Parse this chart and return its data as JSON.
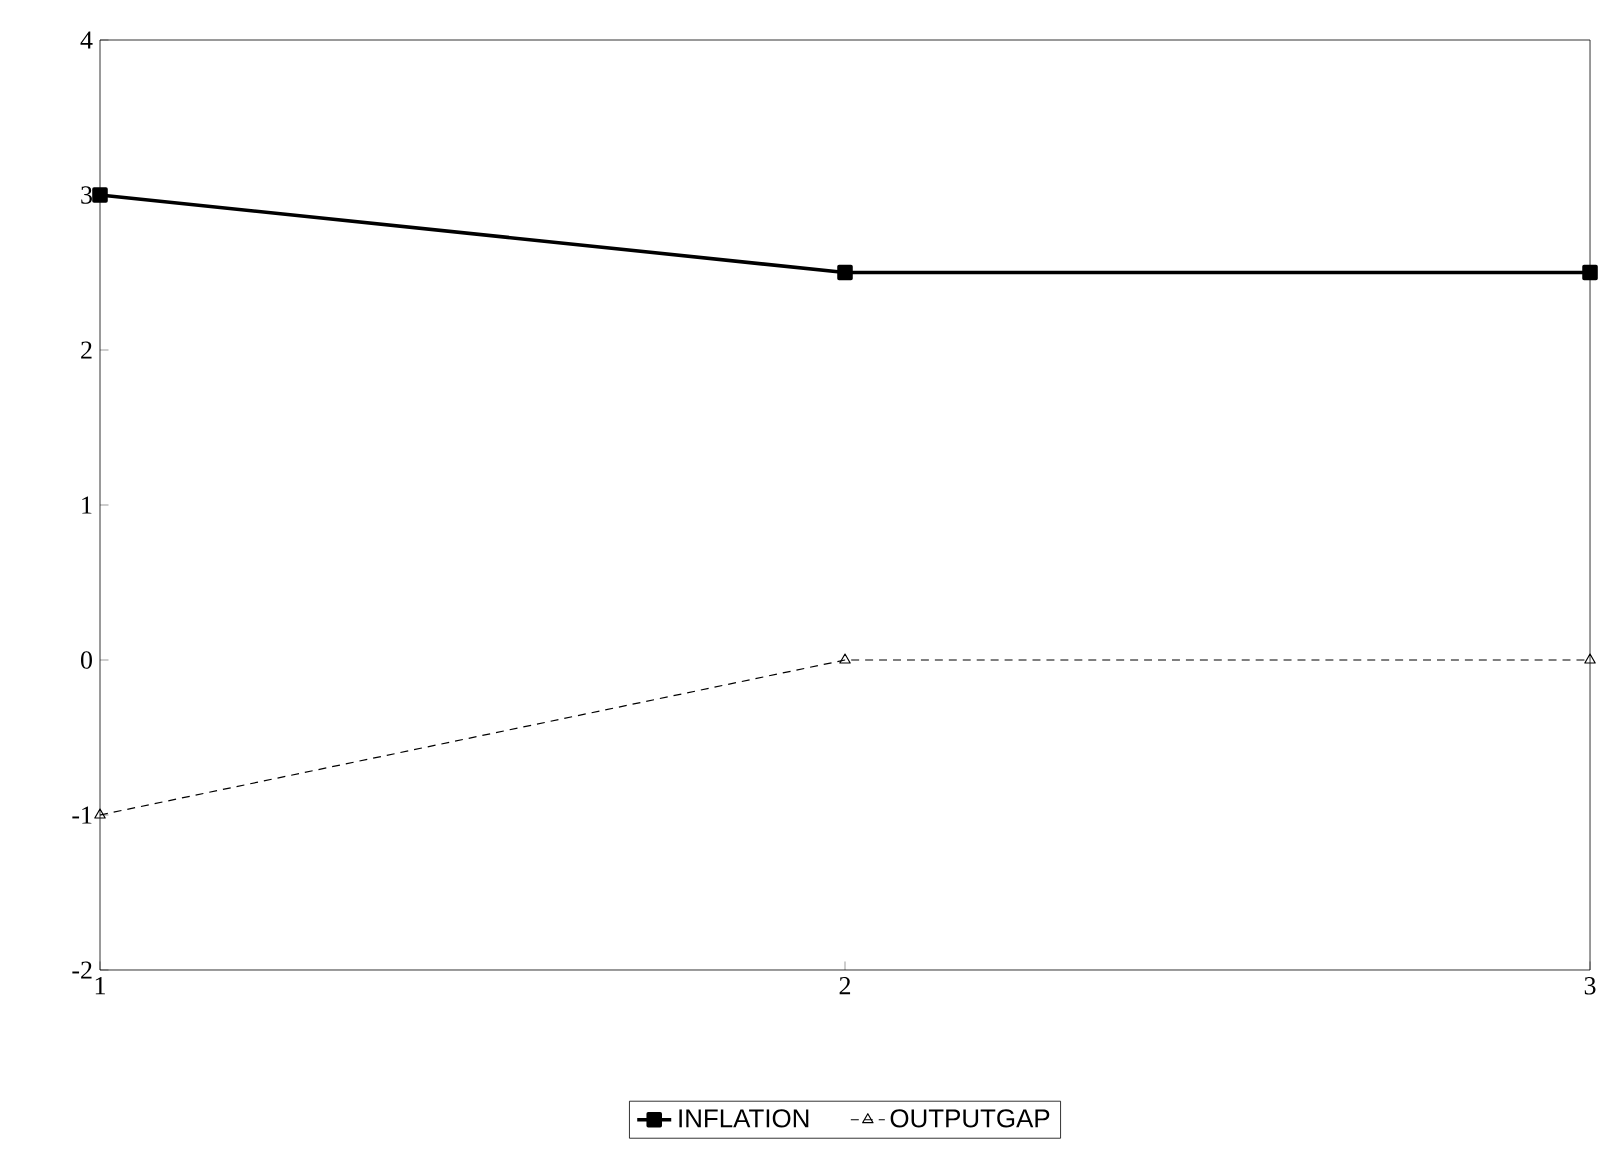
{
  "chart_data": {
    "type": "line",
    "x": [
      1,
      2,
      3
    ],
    "xlim": [
      1,
      3
    ],
    "xticks": [
      1,
      2,
      3
    ],
    "ylim": [
      -2,
      4
    ],
    "yticks": [
      -2,
      -1,
      0,
      1,
      2,
      3,
      4
    ],
    "grid": false,
    "legend": "bottom",
    "series": [
      {
        "name": "INFLATION",
        "color": "#000000",
        "values": [
          3,
          2.5,
          2.5
        ],
        "marker": "square",
        "line_style": "solid"
      },
      {
        "name": "OUTPUTGAP",
        "color": "#000000",
        "values": [
          -1,
          0,
          0
        ],
        "marker": "triangle",
        "line_style": "dashed"
      }
    ]
  }
}
